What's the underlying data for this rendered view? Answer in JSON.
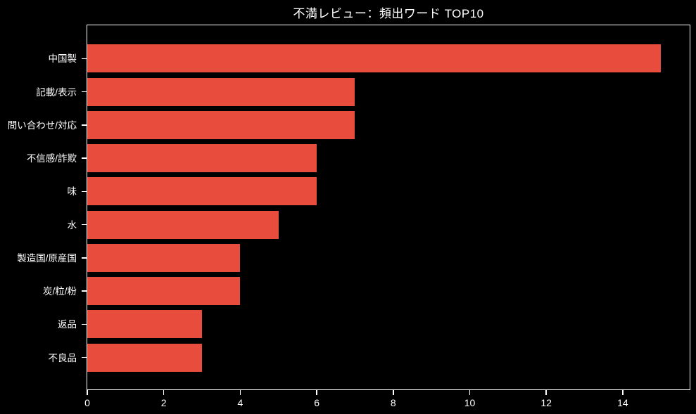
{
  "chart_data": {
    "type": "bar",
    "orientation": "horizontal",
    "title": "不満レビュー：頻出ワード TOP10",
    "categories": [
      "中国製",
      "記載/表示",
      "問い合わせ/対応",
      "不信感/詐欺",
      "味",
      "水",
      "製造国/原産国",
      "炭/粒/粉",
      "返品",
      "不良品"
    ],
    "values": [
      15,
      7,
      7,
      6,
      6,
      5,
      4,
      4,
      3,
      3
    ],
    "xlabel": "",
    "ylabel": "",
    "x_ticks": [
      0,
      2,
      4,
      6,
      8,
      10,
      12,
      14
    ],
    "xlim": [
      0,
      15.75
    ],
    "grid": false,
    "legend": null,
    "colors": {
      "bar": "#e74c3c",
      "background": "#000000",
      "text": "#ffffff",
      "spine": "#ffffff"
    }
  }
}
